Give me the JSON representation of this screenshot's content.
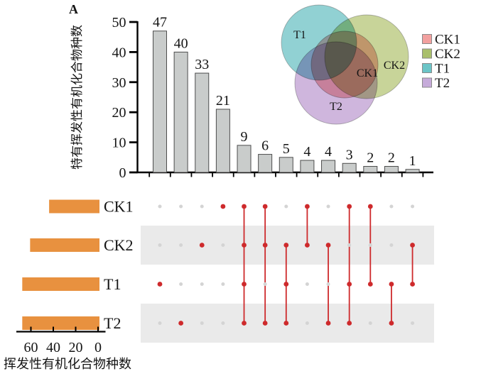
{
  "panel": {
    "label": "A"
  },
  "colors": {
    "bar_fill": "#C9CCCB",
    "bar_stroke": "#4d4d4d",
    "set_bar_orange": "#E8913F",
    "dot_inactive": "#D4D4D4",
    "dot_active": "#CE2A2C",
    "connector_red": "#CE2A2C",
    "stripe": "#EAEAEA",
    "axis": "#000000",
    "venn": {
      "CK1": "#F2A4A2",
      "CK2": "#BCCB82",
      "T1": "#79C7C9",
      "T2": "#C4A6D6"
    },
    "legend": {
      "CK1": "#F2A09F",
      "CK2": "#A9BF6B",
      "T1": "#6BC5C7",
      "T2": "#C6ABDA"
    }
  },
  "matrix_rows": [
    "CK1",
    "CK2",
    "T1",
    "T2"
  ],
  "chart_data": [
    {
      "id": "intersection-bar-chart",
      "type": "bar",
      "title": "",
      "ylabel": "特有挥发性有机化合物种数",
      "ylim": [
        0,
        50
      ],
      "yticks": [
        0,
        10,
        20,
        30,
        40,
        50
      ],
      "grid": false,
      "values": [
        47,
        40,
        33,
        21,
        9,
        6,
        5,
        4,
        4,
        3,
        2,
        2,
        1
      ],
      "intersections": [
        [
          "T1"
        ],
        [
          "T2"
        ],
        [
          "CK2"
        ],
        [
          "CK1"
        ],
        [
          "CK1",
          "CK2",
          "T1",
          "T2"
        ],
        [
          "CK1",
          "CK2",
          "T2"
        ],
        [
          "CK2",
          "T1",
          "T2"
        ],
        [
          "CK1",
          "CK2"
        ],
        [
          "CK2",
          "T2"
        ],
        [
          "CK1",
          "T1",
          "T2"
        ],
        [
          "CK1",
          "T1"
        ],
        [
          "T1",
          "T2"
        ],
        [
          "CK2",
          "T1"
        ]
      ]
    },
    {
      "id": "set-size-bar-chart",
      "type": "bar",
      "orientation": "horizontal-reversed",
      "xlabel": "挥发性有机化合物种数",
      "categories": [
        "CK1",
        "CK2",
        "T1",
        "T2"
      ],
      "values": [
        45,
        62,
        69,
        69
      ],
      "xticks": [
        60,
        40,
        20,
        0
      ],
      "xlim": [
        72,
        0
      ]
    },
    {
      "id": "venn-diagram",
      "type": "venn",
      "sets": [
        "T1",
        "CK2",
        "CK1",
        "T2"
      ],
      "legend_entries": [
        "CK1",
        "CK2",
        "T1",
        "T2"
      ],
      "legend_position": "right"
    }
  ]
}
